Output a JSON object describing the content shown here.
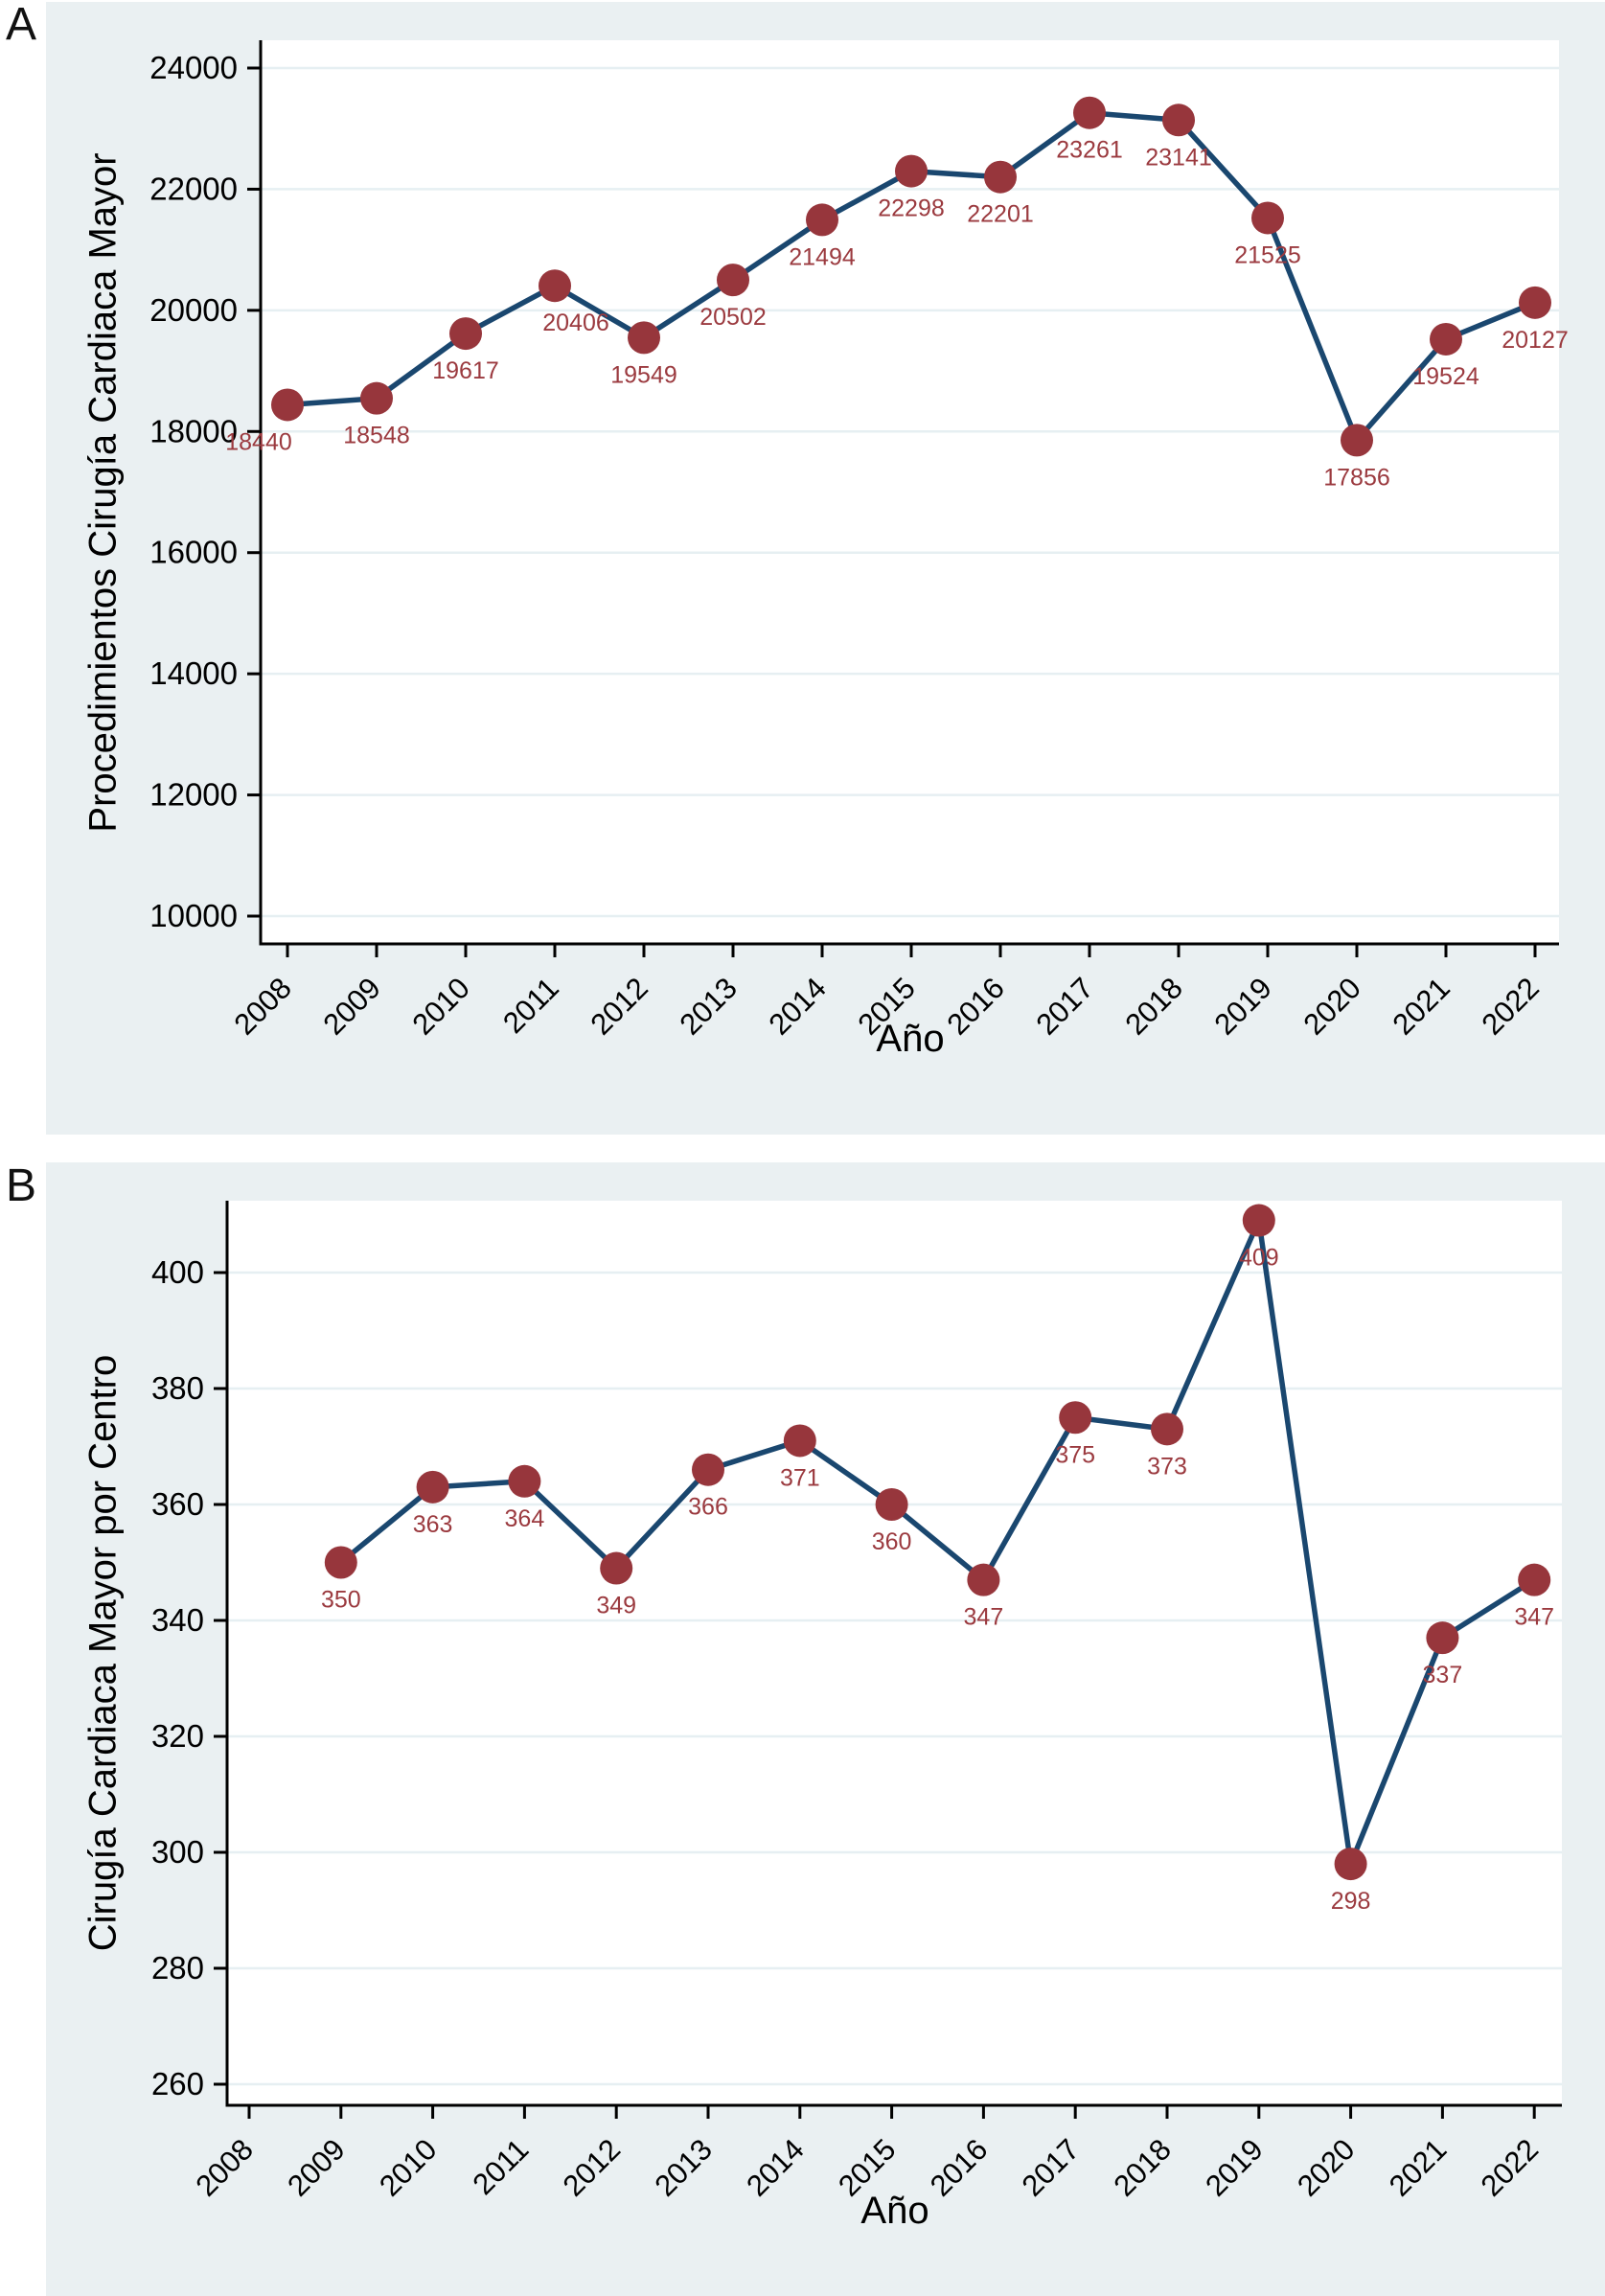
{
  "figure": {
    "panels": [
      {
        "letter": "A"
      },
      {
        "letter": "B"
      }
    ]
  },
  "colors": {
    "panel_background": "#eaf0f2",
    "plot_background": "#ffffff",
    "gridline": "#e6eff2",
    "axis": "#000000",
    "line": "#1a476f",
    "marker": "#97363c",
    "point_label": "#9b3a3f",
    "tick_label": "#000000"
  },
  "chart_data": [
    {
      "id": "panel-a",
      "type": "line",
      "title": "",
      "xlabel": "Año",
      "ylabel": "Procedimientos Cirugía Cardiaca Mayor",
      "x": [
        2008,
        2009,
        2010,
        2011,
        2012,
        2013,
        2014,
        2015,
        2016,
        2017,
        2018,
        2019,
        2020,
        2021,
        2022
      ],
      "values": [
        18440,
        18548,
        19617,
        20406,
        19549,
        20502,
        21494,
        22298,
        22201,
        23261,
        23141,
        21525,
        17856,
        19524,
        20127
      ],
      "point_labels": [
        "18440",
        "18548",
        "19617",
        "20406",
        "19549",
        "20502",
        "21494",
        "22298",
        "22201",
        "23261",
        "23141",
        "21525",
        "17856",
        "19524",
        "20127"
      ],
      "x_ticks": [
        "2008",
        "2009",
        "2010",
        "2011",
        "2012",
        "2013",
        "2014",
        "2015",
        "2016",
        "2017",
        "2018",
        "2019",
        "2020",
        "2021",
        "2022"
      ],
      "y_ticks": [
        10000,
        12000,
        14000,
        16000,
        18000,
        20000,
        22000,
        24000
      ],
      "xlim": [
        2007.7,
        2022.3
      ],
      "ylim": [
        9540,
        24460
      ],
      "grid": true,
      "legend": null
    },
    {
      "id": "panel-b",
      "type": "line",
      "title": "",
      "xlabel": "Año",
      "ylabel": "Cirugía Cardiaca Mayor por Centro",
      "x": [
        2009,
        2010,
        2011,
        2012,
        2013,
        2014,
        2015,
        2016,
        2017,
        2018,
        2019,
        2020,
        2021,
        2022
      ],
      "values": [
        350,
        363,
        364,
        349,
        366,
        371,
        360,
        347,
        375,
        373,
        409,
        298,
        337,
        347
      ],
      "point_labels": [
        "350",
        "363",
        "364",
        "349",
        "366",
        "371",
        "360",
        "347",
        "375",
        "373",
        "409",
        "298",
        "337",
        "347"
      ],
      "x_ticks": [
        "2008",
        "2009",
        "2010",
        "2011",
        "2012",
        "2013",
        "2014",
        "2015",
        "2016",
        "2017",
        "2018",
        "2019",
        "2020",
        "2021",
        "2022"
      ],
      "y_ticks": [
        260,
        280,
        300,
        320,
        340,
        360,
        380,
        400
      ],
      "xlim": [
        2007.8,
        2022.3
      ],
      "ylim": [
        256,
        412
      ],
      "grid": true,
      "legend": null
    }
  ]
}
